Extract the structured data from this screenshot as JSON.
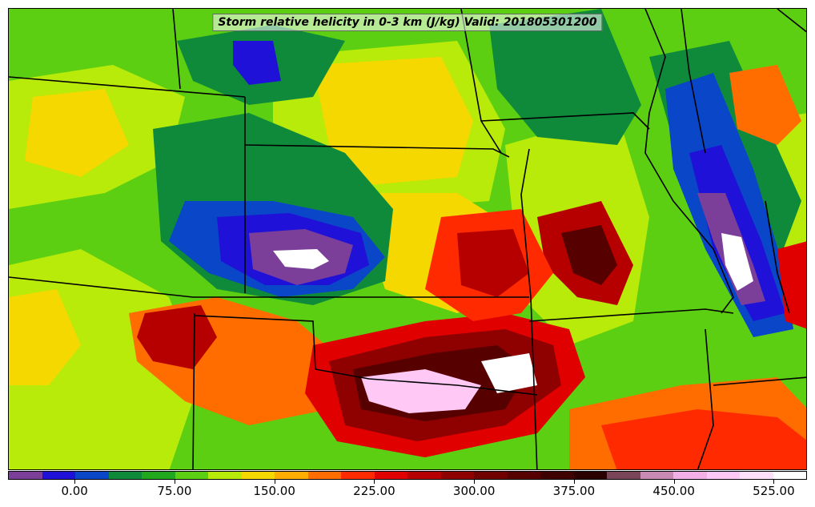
{
  "title": "Storm relative helicity in 0-3 km (J/kg) Valid: 201805301200",
  "colorbar": {
    "colors": [
      "#7b3f9a",
      "#1f11d8",
      "#0a46c8",
      "#0f8a3a",
      "#22a81e",
      "#5dcf12",
      "#b8ea0a",
      "#f5d800",
      "#ffad00",
      "#ff6c00",
      "#ff2a00",
      "#e00000",
      "#b60000",
      "#8f0000",
      "#700000",
      "#570000",
      "#3f0000",
      "#2a0000",
      "#7a4459",
      "#c88ab3",
      "#f2b0e6",
      "#ffc8f5",
      "#ffe0fa",
      "#ffffff"
    ],
    "min": -50,
    "max": 550,
    "tick_values": [
      0,
      75,
      150,
      225,
      300,
      375,
      450,
      525
    ],
    "tick_labels": [
      "0.00",
      "75.00",
      "150.00",
      "225.00",
      "300.00",
      "375.00",
      "450.00",
      "525.00"
    ]
  },
  "map": {
    "background_color": "#5dcf12",
    "border_color": "#000000"
  }
}
